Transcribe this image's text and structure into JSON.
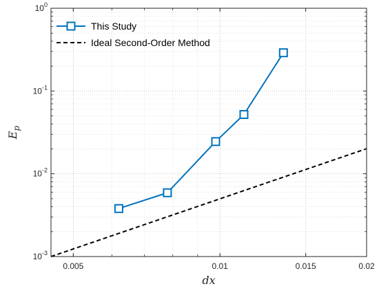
{
  "chart_data": {
    "type": "line",
    "title": "",
    "xlabel": "dx",
    "ylabel": "E",
    "ylabel_sub": "p",
    "x_scale": "log",
    "y_scale": "log",
    "xlim": [
      0.0045,
      0.02
    ],
    "ylim": [
      0.001,
      1
    ],
    "grid": true,
    "minor_grid": true,
    "legend_position": "top-left",
    "x_ticks": [
      {
        "value": 0.005,
        "label": "0.005"
      },
      {
        "value": 0.01,
        "label": "0.01"
      },
      {
        "value": 0.015,
        "label": "0.015"
      },
      {
        "value": 0.02,
        "label": "0.02"
      }
    ],
    "y_ticks": [
      {
        "value": 0.001,
        "base": "10",
        "exp": "-3"
      },
      {
        "value": 0.01,
        "base": "10",
        "exp": "-2"
      },
      {
        "value": 0.1,
        "base": "10",
        "exp": "-1"
      },
      {
        "value": 1,
        "base": "10",
        "exp": "0"
      }
    ],
    "series": [
      {
        "name": "This Study",
        "color": "#0072BD",
        "style": "solid",
        "marker": "square",
        "x": [
          0.0062,
          0.0078,
          0.0098,
          0.0112,
          0.0135
        ],
        "y": [
          0.0038,
          0.0059,
          0.0245,
          0.052,
          0.29
        ]
      },
      {
        "name": "Ideal Second-Order Method",
        "color": "#000000",
        "style": "dashed",
        "marker": "none",
        "x": [
          0.0045,
          0.02
        ],
        "y": [
          0.001,
          0.0201
        ]
      }
    ]
  }
}
